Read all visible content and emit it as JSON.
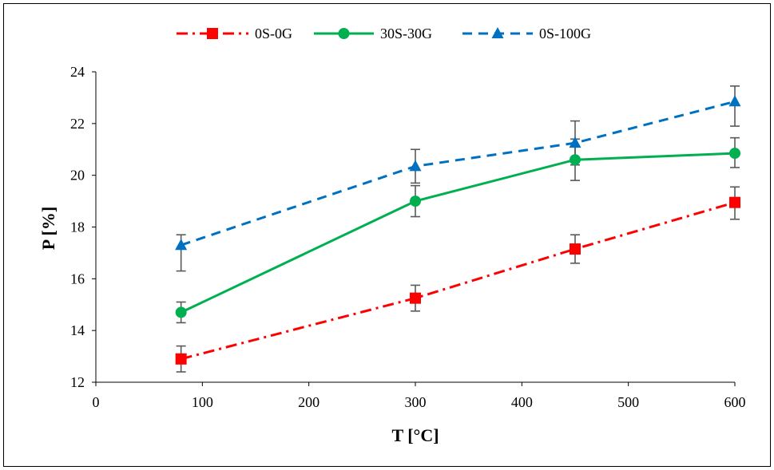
{
  "chart_data": {
    "type": "line",
    "xlabel": "T [°C]",
    "ylabel": "P [%]",
    "xlim": [
      0,
      600
    ],
    "ylim": [
      12,
      24
    ],
    "xticks": [
      0,
      100,
      200,
      300,
      400,
      500,
      600
    ],
    "yticks": [
      12,
      14,
      16,
      18,
      20,
      22,
      24
    ],
    "x": [
      80,
      300,
      450,
      600
    ],
    "legend_position": "top",
    "grid": false,
    "series": [
      {
        "name": "0S-0G",
        "color": "#ff0000",
        "line_style": "dash-dot",
        "marker": "square",
        "values": [
          12.9,
          15.25,
          17.15,
          18.95
        ],
        "error_low": [
          12.4,
          14.75,
          16.6,
          18.3
        ],
        "error_high": [
          13.4,
          15.75,
          17.7,
          19.55
        ]
      },
      {
        "name": "30S-30G",
        "color": "#00b050",
        "line_style": "solid",
        "marker": "circle",
        "values": [
          14.7,
          19.0,
          20.6,
          20.85
        ],
        "error_low": [
          14.3,
          18.4,
          19.8,
          20.3
        ],
        "error_high": [
          15.1,
          19.6,
          21.4,
          21.45
        ]
      },
      {
        "name": "0S-100G",
        "color": "#0070c0",
        "line_style": "dashed",
        "marker": "triangle",
        "values": [
          17.3,
          20.35,
          21.25,
          22.85
        ],
        "error_low": [
          16.3,
          19.7,
          20.4,
          21.9
        ],
        "error_high": [
          17.7,
          21.0,
          22.1,
          23.45
        ]
      }
    ]
  }
}
